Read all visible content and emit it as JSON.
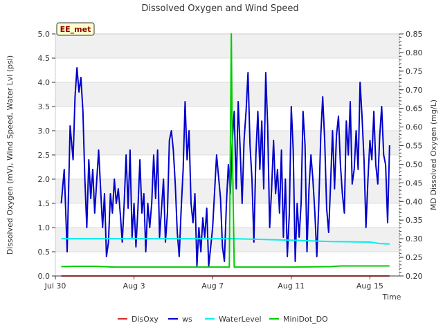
{
  "chart_data": {
    "type": "line",
    "title": "Dissolved Oxygen and Wind Speed",
    "station_badge": "EE_met",
    "xlabel": "Time",
    "ylabel_left": "Dissolved Oxygen (mV), Wind Speed, Water Lvl (psi)",
    "ylabel_right": "MD Dissolved Oxygen (mg/L)",
    "x_tick_labels": [
      "Jul 30",
      "Aug 3",
      "Aug 7",
      "Aug 11",
      "Aug 15"
    ],
    "x_tick_days": [
      0,
      4,
      8,
      12,
      16
    ],
    "xlim_days": [
      0,
      17.5
    ],
    "ylim_left": [
      0,
      5
    ],
    "ylim_right": [
      0.2,
      0.85
    ],
    "y_left_ticks": [
      "0.0",
      "0.5",
      "1.0",
      "1.5",
      "2.0",
      "2.5",
      "3.0",
      "3.5",
      "4.0",
      "4.5",
      "5.0"
    ],
    "y_right_ticks": [
      "0.20",
      "0.25",
      "0.30",
      "0.35",
      "0.40",
      "0.45",
      "0.50",
      "0.55",
      "0.60",
      "0.65",
      "0.70",
      "0.75",
      "0.80",
      "0.85"
    ],
    "series": [
      {
        "name": "DisOxy",
        "color": "#d62728",
        "axis": "left",
        "x": [
          0.3,
          17.0
        ],
        "y": [
          0.0,
          0.0
        ]
      },
      {
        "name": "ws",
        "color": "#0000cc",
        "axis": "left",
        "x": [
          0.3,
          0.45,
          0.6,
          0.75,
          0.9,
          1.0,
          1.1,
          1.2,
          1.3,
          1.4,
          1.5,
          1.6,
          1.7,
          1.8,
          1.9,
          2.0,
          2.2,
          2.4,
          2.5,
          2.6,
          2.7,
          2.8,
          2.9,
          3.0,
          3.1,
          3.2,
          3.3,
          3.4,
          3.5,
          3.6,
          3.7,
          3.8,
          3.9,
          4.0,
          4.1,
          4.2,
          4.3,
          4.4,
          4.5,
          4.6,
          4.7,
          4.8,
          4.9,
          5.0,
          5.1,
          5.2,
          5.3,
          5.4,
          5.5,
          5.6,
          5.7,
          5.8,
          5.9,
          6.0,
          6.1,
          6.2,
          6.3,
          6.4,
          6.5,
          6.6,
          6.7,
          6.8,
          6.9,
          7.0,
          7.1,
          7.2,
          7.3,
          7.4,
          7.5,
          7.6,
          7.7,
          7.8,
          7.9,
          8.0,
          8.2,
          8.4,
          8.5,
          8.6,
          8.7,
          8.8,
          8.9,
          9.0,
          9.1,
          9.2,
          9.3,
          9.4,
          9.5,
          9.6,
          9.7,
          9.8,
          9.9,
          10.0,
          10.1,
          10.2,
          10.3,
          10.4,
          10.5,
          10.6,
          10.7,
          10.8,
          10.9,
          11.0,
          11.1,
          11.2,
          11.3,
          11.4,
          11.5,
          11.6,
          11.7,
          11.8,
          11.9,
          12.0,
          12.1,
          12.2,
          12.3,
          12.4,
          12.5,
          12.6,
          12.7,
          12.8,
          12.9,
          13.0,
          13.1,
          13.2,
          13.3,
          13.4,
          13.5,
          13.6,
          13.7,
          13.8,
          13.9,
          14.0,
          14.1,
          14.2,
          14.3,
          14.4,
          14.5,
          14.6,
          14.7,
          14.8,
          14.9,
          15.0,
          15.1,
          15.2,
          15.3,
          15.4,
          15.5,
          15.6,
          15.7,
          15.8,
          15.9,
          16.0,
          16.1,
          16.2,
          16.3,
          16.4,
          16.5,
          16.6,
          16.7,
          16.8,
          16.9,
          17.0
        ],
        "y": [
          1.5,
          2.2,
          0.5,
          3.1,
          2.4,
          3.7,
          4.3,
          3.8,
          4.1,
          3.4,
          2.0,
          1.0,
          2.4,
          1.6,
          2.2,
          1.3,
          2.6,
          1.0,
          1.7,
          0.4,
          0.7,
          1.7,
          1.3,
          2.0,
          1.5,
          1.8,
          1.3,
          0.7,
          1.5,
          2.5,
          1.4,
          2.6,
          0.8,
          1.5,
          0.6,
          1.4,
          2.4,
          1.3,
          1.7,
          0.5,
          1.5,
          1.0,
          1.5,
          2.5,
          1.6,
          2.6,
          0.8,
          1.4,
          2.0,
          0.7,
          1.3,
          2.8,
          3.0,
          2.6,
          1.9,
          0.9,
          0.4,
          1.4,
          2.2,
          3.6,
          2.4,
          3.0,
          1.5,
          1.1,
          1.7,
          0.2,
          1.0,
          0.5,
          1.2,
          0.8,
          1.4,
          0.2,
          0.6,
          1.0,
          2.5,
          1.6,
          0.6,
          0.3,
          1.5,
          2.3,
          1.7,
          2.8,
          3.4,
          1.8,
          3.6,
          2.6,
          1.5,
          2.8,
          3.4,
          4.2,
          2.7,
          2.0,
          0.7,
          2.5,
          3.4,
          2.2,
          3.2,
          1.8,
          4.2,
          3.1,
          1.0,
          1.8,
          2.8,
          1.7,
          2.2,
          1.3,
          2.6,
          0.8,
          2.0,
          0.4,
          1.3,
          3.5,
          2.6,
          0.3,
          1.5,
          0.8,
          1.5,
          3.4,
          2.7,
          0.5,
          1.8,
          2.5,
          2.0,
          1.3,
          0.4,
          1.5,
          2.9,
          3.7,
          2.8,
          1.4,
          0.9,
          1.9,
          3.0,
          1.8,
          2.9,
          3.3,
          2.3,
          1.7,
          1.3,
          3.2,
          2.5,
          3.6,
          1.9,
          2.2,
          3.0,
          2.2,
          4.0,
          3.3,
          2.4,
          1.0,
          2.0,
          2.8,
          2.4,
          3.4,
          2.3,
          1.9,
          2.9,
          3.5,
          2.5,
          2.3,
          1.1,
          2.7
        ]
      },
      {
        "name": "WaterLevel",
        "color": "#00eeee",
        "axis": "left",
        "x": [
          0.3,
          2.0,
          4.0,
          6.0,
          8.0,
          9.0,
          10.0,
          12.0,
          14.0,
          16.0,
          16.5,
          17.0
        ],
        "y": [
          0.77,
          0.77,
          0.77,
          0.77,
          0.77,
          0.77,
          0.76,
          0.74,
          0.71,
          0.7,
          0.67,
          0.66
        ]
      },
      {
        "name": "MiniDot_DO",
        "color": "#00cc00",
        "axis": "right",
        "x": [
          0.3,
          1.0,
          2.0,
          3.0,
          4.0,
          6.0,
          7.0,
          8.0,
          8.85,
          8.9,
          8.95,
          9.0,
          9.1,
          10.0,
          12.0,
          14.0,
          14.5,
          16.0,
          17.0
        ],
        "y": [
          0.225,
          0.226,
          0.226,
          0.224,
          0.224,
          0.224,
          0.224,
          0.224,
          0.224,
          0.55,
          0.85,
          0.55,
          0.224,
          0.224,
          0.224,
          0.225,
          0.227,
          0.227,
          0.227
        ]
      }
    ]
  },
  "legend": [
    {
      "label": "DisOxy",
      "color": "#d62728"
    },
    {
      "label": "ws",
      "color": "#0000cc"
    },
    {
      "label": "WaterLevel",
      "color": "#00eeee"
    },
    {
      "label": "MiniDot_DO",
      "color": "#00cc00"
    }
  ]
}
